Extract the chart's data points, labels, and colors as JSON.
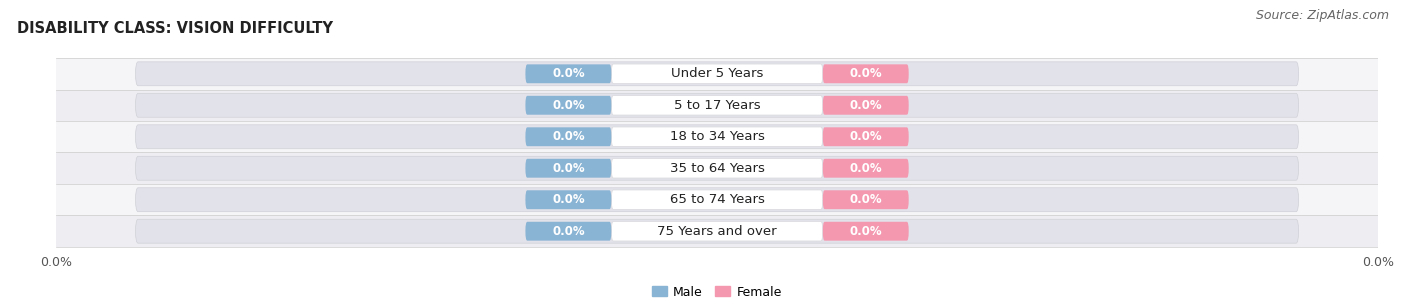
{
  "title": "DISABILITY CLASS: VISION DIFFICULTY",
  "source": "Source: ZipAtlas.com",
  "categories": [
    "Under 5 Years",
    "5 to 17 Years",
    "18 to 34 Years",
    "35 to 64 Years",
    "65 to 74 Years",
    "75 Years and over"
  ],
  "male_values": [
    0.0,
    0.0,
    0.0,
    0.0,
    0.0,
    0.0
  ],
  "female_values": [
    0.0,
    0.0,
    0.0,
    0.0,
    0.0,
    0.0
  ],
  "male_color": "#8ab4d4",
  "female_color": "#f498b0",
  "male_label": "Male",
  "female_label": "Female",
  "row_colors": [
    "#efefef",
    "#e8e8ee"
  ],
  "row_alt_colors": [
    "#f5f5f8",
    "#ededf2"
  ],
  "bar_bg_color": "#e8e8f0",
  "title_fontsize": 10.5,
  "source_fontsize": 9,
  "label_fontsize": 9,
  "category_fontsize": 9.5,
  "value_fontsize": 8.5,
  "legend_fontsize": 9,
  "figsize": [
    14.06,
    3.05
  ],
  "dpi": 100
}
